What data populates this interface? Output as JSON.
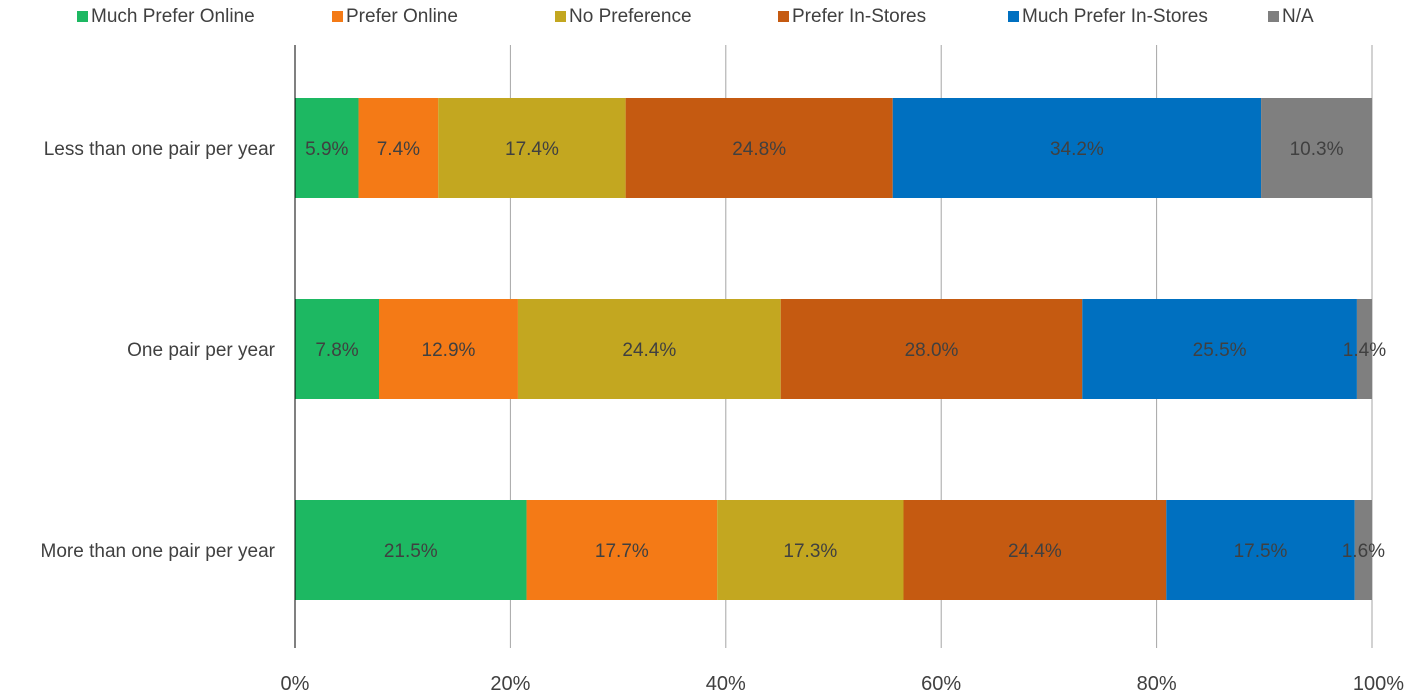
{
  "chart_data": {
    "type": "bar",
    "orientation": "horizontal",
    "stacked": true,
    "title": "",
    "xlabel": "",
    "ylabel": "",
    "xlim": [
      0,
      100
    ],
    "x_ticks": [
      "0%",
      "20%",
      "40%",
      "60%",
      "80%",
      "100%"
    ],
    "grid": "vertical gridlines",
    "legend_position": "top",
    "categories": [
      "Less than one pair per year",
      "One pair per year",
      "More than one pair per year"
    ],
    "series": [
      {
        "name": "Much Prefer Online",
        "color": "#1db862",
        "values": [
          5.9,
          7.8,
          21.5
        ],
        "labels": [
          "5.9%",
          "7.8%",
          "21.5%"
        ]
      },
      {
        "name": "Prefer Online",
        "color": "#f47a16",
        "values": [
          7.4,
          12.9,
          17.7
        ],
        "labels": [
          "7.4%",
          "12.9%",
          "17.7%"
        ]
      },
      {
        "name": "No Preference",
        "color": "#c3a720",
        "values": [
          17.4,
          24.4,
          17.3
        ],
        "labels": [
          "17.4%",
          "24.4%",
          "17.3%"
        ]
      },
      {
        "name": "Prefer In-Stores",
        "color": "#c55a11",
        "values": [
          24.8,
          28.0,
          24.4
        ],
        "labels": [
          "24.8%",
          "28.0%",
          "24.4%"
        ]
      },
      {
        "name": "Much Prefer In-Stores",
        "color": "#0070c0",
        "values": [
          34.2,
          25.5,
          17.5
        ],
        "labels": [
          "34.2%",
          "25.5%",
          "17.5%"
        ]
      },
      {
        "name": "N/A",
        "color": "#7f7f7f",
        "values": [
          10.3,
          1.4,
          1.6
        ],
        "labels": [
          "10.3%",
          "1.4%",
          "1.6%"
        ]
      }
    ]
  }
}
